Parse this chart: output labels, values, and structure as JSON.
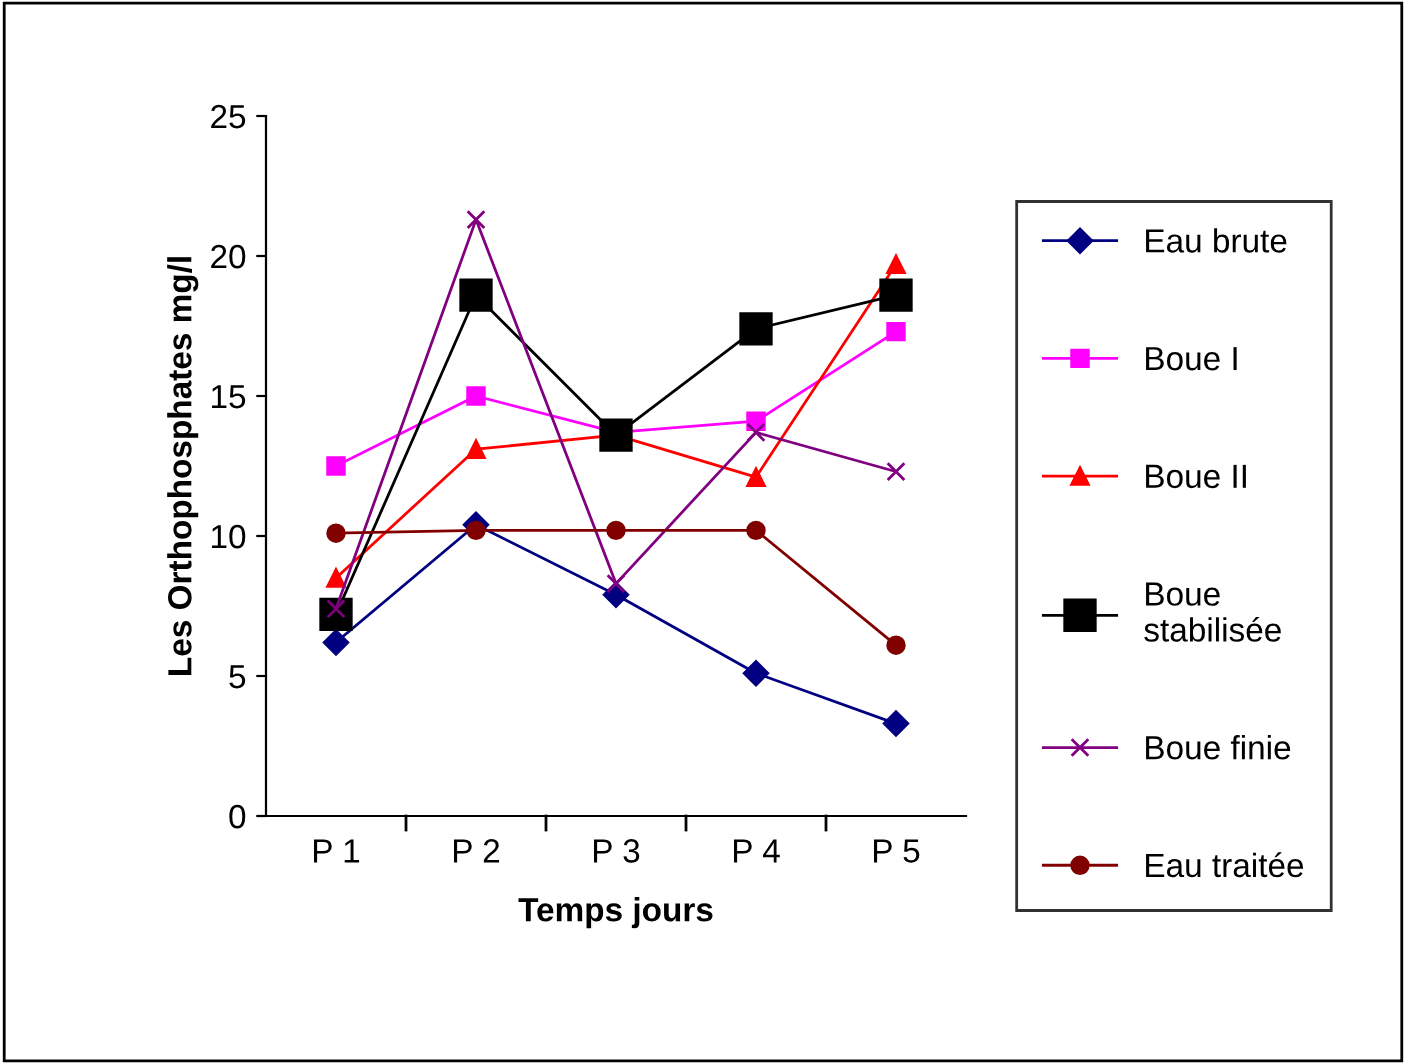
{
  "chart_data": {
    "type": "line",
    "xlabel": "Temps jours",
    "ylabel": "Les Orthophosphates mg/l",
    "categories": [
      "P 1",
      "P 2",
      "P 3",
      "P 4",
      "P 5"
    ],
    "series": [
      {
        "name": "Eau brute",
        "color": "#000080",
        "marker": "diamond",
        "values": [
          6.2,
          10.4,
          7.9,
          5.1,
          3.3
        ]
      },
      {
        "name": "Boue I",
        "color": "#ff00ff",
        "marker": "square",
        "values": [
          12.5,
          15.0,
          13.7,
          14.1,
          17.3
        ]
      },
      {
        "name": "Boue II",
        "color": "#ff0000",
        "marker": "triangle",
        "values": [
          8.5,
          13.1,
          13.6,
          12.1,
          19.7
        ]
      },
      {
        "name": "Boue\nstabilisée",
        "color": "#000000",
        "marker": "square",
        "values": [
          7.2,
          18.6,
          13.6,
          17.4,
          18.6
        ]
      },
      {
        "name": "Boue finie",
        "color": "#800080",
        "marker": "cross",
        "values": [
          7.4,
          21.3,
          8.3,
          13.7,
          12.3
        ]
      },
      {
        "name": "Eau traitée",
        "color": "#800000",
        "marker": "circle",
        "values": [
          10.1,
          10.2,
          10.2,
          10.2,
          6.1
        ]
      }
    ],
    "ylim": [
      0,
      25
    ],
    "yticks": [
      0,
      5,
      10,
      15,
      20,
      25
    ],
    "grid": false,
    "legend": "right",
    "line_style": "solid"
  }
}
